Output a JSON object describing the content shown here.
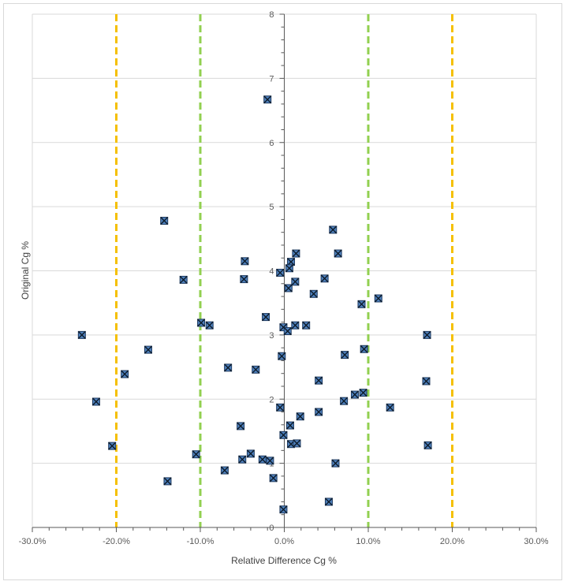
{
  "chart_data": {
    "type": "scatter",
    "title": "",
    "xlabel": "Relative Difference Cg %",
    "ylabel": "Original Cg %",
    "xlim": [
      -30,
      30
    ],
    "ylim": [
      0,
      8
    ],
    "x_tick_values": [
      -30,
      -20,
      -10,
      0,
      10,
      20,
      30
    ],
    "x_tick_labels": [
      "-30.0%",
      "-20.0%",
      "-10.0%",
      "0.0%",
      "10.0%",
      "20.0%",
      "30.0%"
    ],
    "y_tick_values": [
      0,
      1,
      2,
      3,
      4,
      5,
      6,
      7,
      8
    ],
    "y_tick_labels": [
      "0",
      "1",
      "2",
      "3",
      "4",
      "5",
      "6",
      "7",
      "8"
    ],
    "grid": "horizontal",
    "reference_lines": [
      {
        "x": -20,
        "color": "#f5c000",
        "style": "dashed"
      },
      {
        "x": -10,
        "color": "#92d050",
        "style": "dashed"
      },
      {
        "x": 10,
        "color": "#92d050",
        "style": "dashed"
      },
      {
        "x": 20,
        "color": "#f5c000",
        "style": "dashed"
      }
    ],
    "marker_color": "#4f81bd",
    "series": [
      {
        "name": "Cg",
        "points": [
          [
            -2.0,
            6.67
          ],
          [
            -14.3,
            4.78
          ],
          [
            5.8,
            4.64
          ],
          [
            6.4,
            4.27
          ],
          [
            1.4,
            4.27
          ],
          [
            -4.7,
            4.15
          ],
          [
            0.8,
            4.14
          ],
          [
            -0.5,
            3.97
          ],
          [
            0.6,
            4.04
          ],
          [
            -12.0,
            3.86
          ],
          [
            -4.8,
            3.87
          ],
          [
            1.3,
            3.83
          ],
          [
            4.8,
            3.88
          ],
          [
            0.5,
            3.73
          ],
          [
            3.5,
            3.64
          ],
          [
            9.2,
            3.48
          ],
          [
            11.2,
            3.57
          ],
          [
            -2.2,
            3.28
          ],
          [
            -9.9,
            3.19
          ],
          [
            -8.9,
            3.15
          ],
          [
            -0.1,
            3.12
          ],
          [
            0.4,
            3.06
          ],
          [
            1.3,
            3.15
          ],
          [
            2.6,
            3.15
          ],
          [
            -24.1,
            3.0
          ],
          [
            17.0,
            3.0
          ],
          [
            -16.2,
            2.77
          ],
          [
            9.5,
            2.78
          ],
          [
            -0.3,
            2.67
          ],
          [
            7.2,
            2.69
          ],
          [
            -6.7,
            2.49
          ],
          [
            -3.4,
            2.46
          ],
          [
            -19.0,
            2.39
          ],
          [
            4.1,
            2.29
          ],
          [
            16.9,
            2.28
          ],
          [
            9.4,
            2.1
          ],
          [
            8.4,
            2.07
          ],
          [
            7.1,
            1.97
          ],
          [
            -22.4,
            1.96
          ],
          [
            12.6,
            1.87
          ],
          [
            -0.5,
            1.87
          ],
          [
            4.1,
            1.8
          ],
          [
            1.9,
            1.73
          ],
          [
            -5.2,
            1.58
          ],
          [
            0.7,
            1.59
          ],
          [
            -0.1,
            1.44
          ],
          [
            0.8,
            1.3
          ],
          [
            1.5,
            1.31
          ],
          [
            17.1,
            1.28
          ],
          [
            -20.5,
            1.27
          ],
          [
            -10.5,
            1.14
          ],
          [
            -4.0,
            1.15
          ],
          [
            -5.0,
            1.06
          ],
          [
            -2.6,
            1.06
          ],
          [
            -1.7,
            1.04
          ],
          [
            6.1,
            1.0
          ],
          [
            -7.1,
            0.89
          ],
          [
            -1.3,
            0.77
          ],
          [
            -13.9,
            0.72
          ],
          [
            5.3,
            0.4
          ],
          [
            -0.1,
            0.28
          ]
        ]
      }
    ]
  }
}
